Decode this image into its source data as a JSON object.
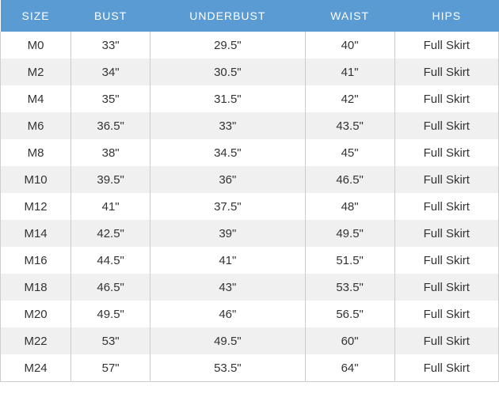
{
  "size_chart": {
    "type": "table",
    "header_bg_color": "#5a9bd4",
    "header_text_color": "#ffffff",
    "row_odd_bg": "#ffffff",
    "row_even_bg": "#f0f0f0",
    "border_color": "#cccccc",
    "text_color": "#333333",
    "columns": [
      "SIZE",
      "BUST",
      "UNDERBUST",
      "WAIST",
      "HIPS"
    ],
    "rows": [
      [
        "M0",
        "33\"",
        "29.5\"",
        "40\"",
        "Full Skirt"
      ],
      [
        "M2",
        "34\"",
        "30.5\"",
        "41\"",
        "Full Skirt"
      ],
      [
        "M4",
        "35\"",
        "31.5\"",
        "42\"",
        "Full Skirt"
      ],
      [
        "M6",
        "36.5\"",
        "33\"",
        "43.5\"",
        "Full Skirt"
      ],
      [
        "M8",
        "38\"",
        "34.5\"",
        "45\"",
        "Full Skirt"
      ],
      [
        "M10",
        "39.5\"",
        "36\"",
        "46.5\"",
        "Full Skirt"
      ],
      [
        "M12",
        "41\"",
        "37.5\"",
        "48\"",
        "Full Skirt"
      ],
      [
        "M14",
        "42.5\"",
        "39\"",
        "49.5\"",
        "Full Skirt"
      ],
      [
        "M16",
        "44.5\"",
        "41\"",
        "51.5\"",
        "Full Skirt"
      ],
      [
        "M18",
        "46.5\"",
        "43\"",
        "53.5\"",
        "Full Skirt"
      ],
      [
        "M20",
        "49.5\"",
        "46\"",
        "56.5\"",
        "Full Skirt"
      ],
      [
        "M22",
        "53\"",
        "49.5\"",
        "60\"",
        "Full Skirt"
      ],
      [
        "M24",
        "57\"",
        "53.5\"",
        "64\"",
        "Full Skirt"
      ]
    ]
  }
}
